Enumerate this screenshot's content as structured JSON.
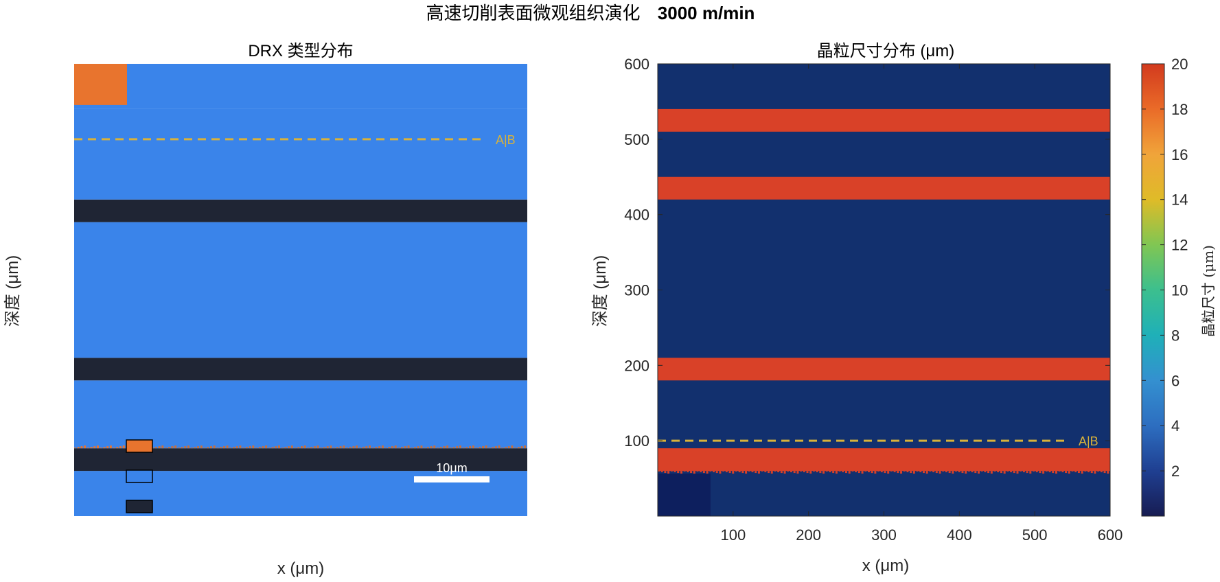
{
  "figure": {
    "title": "高速切削表面微观组织演化",
    "title_speed": "3000 m/min"
  },
  "colors": {
    "blue": "#3a84ea",
    "dark": "#1f2534",
    "orange": "#e8742e",
    "navy": "#12306e",
    "red": "#d94128",
    "deep": "#0d1f5e",
    "annot": "#d9b23a"
  },
  "chart_data": [
    {
      "type": "heatmap",
      "title": "DRX 类型分布",
      "xlabel": "x (μm)",
      "ylabel": "深度 (μm)",
      "xlim": [
        0,
        600
      ],
      "ylim": [
        0,
        600
      ],
      "axis_ticks": "hidden",
      "layers": [
        {
          "y0": 0,
          "y1": 60,
          "class": "blue"
        },
        {
          "y0": 60,
          "y1": 90,
          "class": "dark"
        },
        {
          "y0": 90,
          "y1": 180,
          "class": "blue"
        },
        {
          "y0": 180,
          "y1": 210,
          "class": "dark"
        },
        {
          "y0": 210,
          "y1": 390,
          "class": "blue"
        },
        {
          "y0": 390,
          "y1": 420,
          "class": "dark"
        },
        {
          "y0": 420,
          "y1": 540,
          "class": "blue"
        },
        {
          "y0": 540,
          "y1": 600,
          "class": "blue"
        }
      ],
      "orange_region": {
        "x0": 0,
        "x1": 70,
        "y0": 540,
        "y1": 600
      },
      "legend_swatches": [
        "orange",
        "blue",
        "dark"
      ],
      "interface_line": {
        "depth": 500,
        "label": "A|B",
        "style": "dashed"
      },
      "scale_bar": {
        "label": "10μm"
      }
    },
    {
      "type": "heatmap",
      "title": "晶粒尺寸分布 (μm)",
      "xlabel": "x (μm)",
      "ylabel": "深度 (μm)",
      "xlim": [
        0,
        600
      ],
      "ylim": [
        0,
        600
      ],
      "xticks": [
        100,
        200,
        300,
        400,
        500,
        600
      ],
      "yticks": [
        100,
        200,
        300,
        400,
        500,
        600
      ],
      "bands": [
        {
          "y0": 60,
          "y1": 90,
          "value": 19
        },
        {
          "y0": 180,
          "y1": 210,
          "value": 19
        },
        {
          "y0": 420,
          "y1": 450,
          "value": 19
        },
        {
          "y0": 510,
          "y1": 540,
          "value": 19
        }
      ],
      "background_value": 1.5,
      "fine_region": {
        "x0": 0,
        "x1": 70,
        "y0": 0,
        "y1": 60,
        "value": 0.5
      },
      "interface_line": {
        "depth": 100,
        "label": "A|B",
        "style": "dashed"
      },
      "colorbar": {
        "label": "晶粒尺寸 (μm)",
        "range": [
          0,
          20
        ],
        "ticks": [
          2,
          4,
          6,
          8,
          10,
          12,
          14,
          16,
          18,
          20
        ],
        "colormap": "turbo"
      }
    }
  ]
}
